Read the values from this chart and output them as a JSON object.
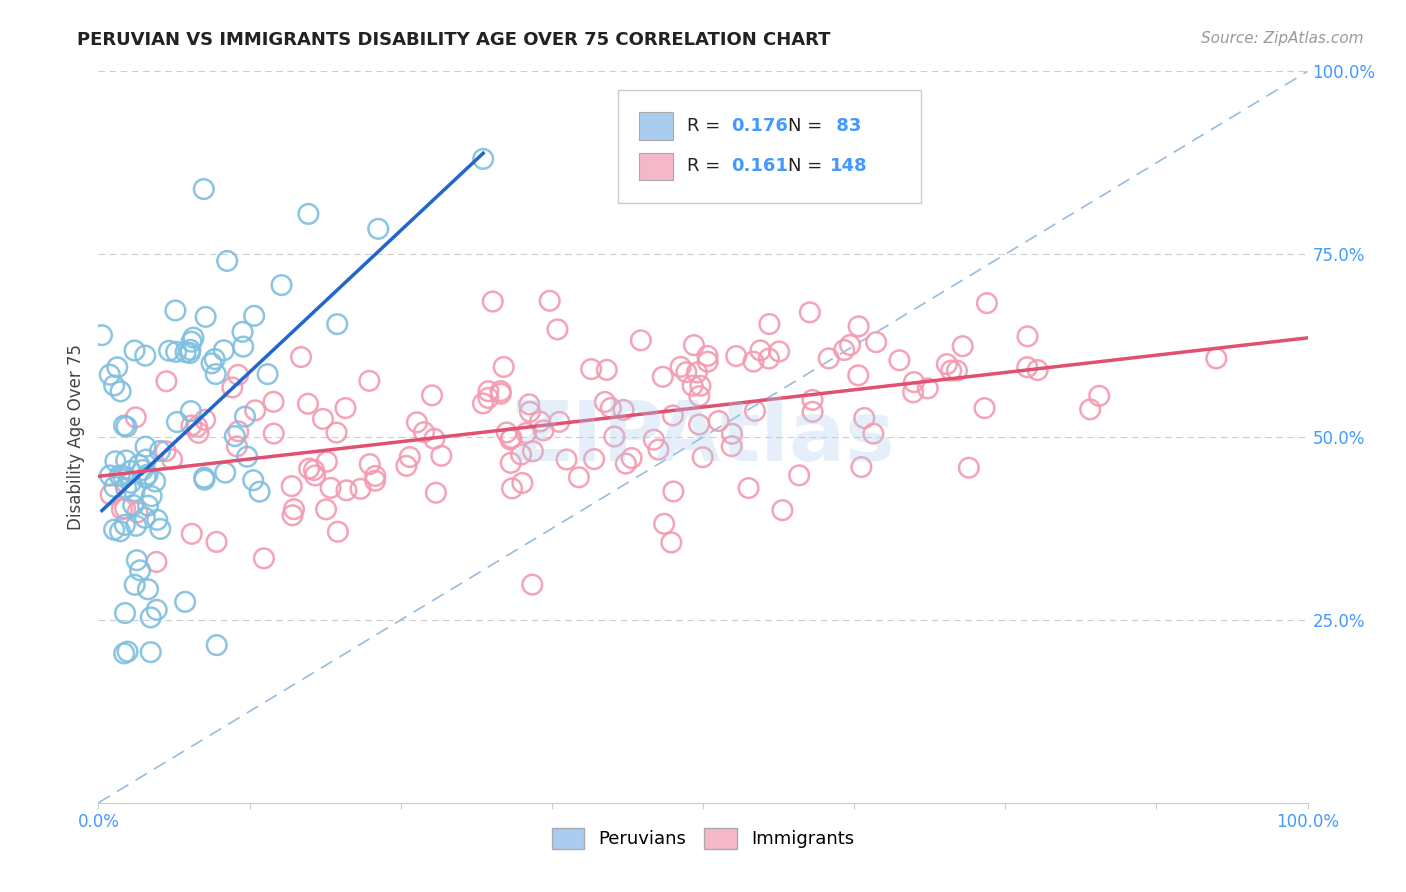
{
  "title": "PERUVIAN VS IMMIGRANTS DISABILITY AGE OVER 75 CORRELATION CHART",
  "source": "Source: ZipAtlas.com",
  "ylabel": "Disability Age Over 75",
  "peruvian_color": "#7fbfdf",
  "immigrant_color": "#f49ab0",
  "peruvian_line_color": "#2266cc",
  "immigrant_line_color": "#e05070",
  "dashed_line_color": "#99bbdd",
  "legend_box_color1": "#aaccee",
  "legend_box_color2": "#f4b8c8",
  "background_color": "#ffffff",
  "watermark": "ZIPAtlas",
  "peruvian_R": 0.176,
  "peruvian_N": 83,
  "immigrant_R": 0.161,
  "immigrant_N": 148,
  "right_tick_color": "#4499ff",
  "bottom_tick_color": "#4499ff",
  "legend_text_color_R": "#000000",
  "legend_text_color_N": "#4499ff"
}
